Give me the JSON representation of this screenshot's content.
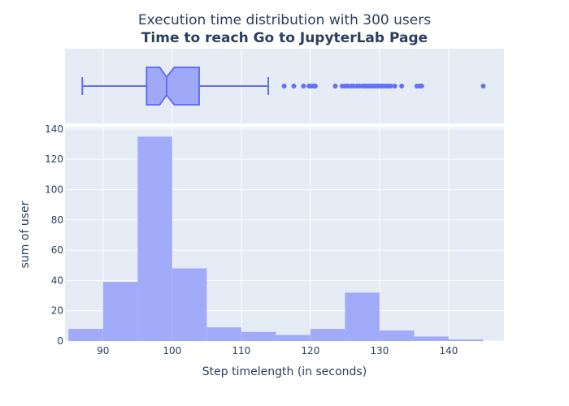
{
  "chart_data": {
    "type": "histogram",
    "title": "Execution time distribution with 300 users",
    "subtitle": "Time to reach Go to JupyterLab Page",
    "xlabel": "Step timelength (in seconds)",
    "ylabel": "sum of user",
    "xlim": [
      84.5,
      148
    ],
    "ylim": [
      0,
      141
    ],
    "x_ticks": [
      90,
      100,
      110,
      120,
      130,
      140
    ],
    "y_ticks": [
      0,
      20,
      40,
      60,
      80,
      100,
      120,
      140
    ],
    "bin_width": 5,
    "bins": [
      {
        "start": 85,
        "end": 90,
        "count": 8
      },
      {
        "start": 90,
        "end": 95,
        "count": 39
      },
      {
        "start": 95,
        "end": 100,
        "count": 135
      },
      {
        "start": 100,
        "end": 105,
        "count": 48
      },
      {
        "start": 105,
        "end": 110,
        "count": 9
      },
      {
        "start": 110,
        "end": 115,
        "count": 6
      },
      {
        "start": 115,
        "end": 120,
        "count": 4
      },
      {
        "start": 120,
        "end": 125,
        "count": 8
      },
      {
        "start": 125,
        "end": 130,
        "count": 32
      },
      {
        "start": 130,
        "end": 135,
        "count": 7
      },
      {
        "start": 135,
        "end": 140,
        "count": 3
      },
      {
        "start": 140,
        "end": 145,
        "count": 1
      }
    ],
    "box": {
      "min": 87,
      "q1": 96.3,
      "notch_low": 98.2,
      "median": 99.2,
      "notch_high": 100.3,
      "q3": 103.9,
      "max": 113.9,
      "outliers": [
        116.2,
        117.6,
        119.0,
        119.8,
        120.2,
        120.5,
        120.7,
        123.6,
        124.6,
        125.0,
        125.4,
        125.9,
        126.2,
        126.7,
        127.1,
        127.5,
        127.8,
        128.1,
        128.4,
        128.8,
        129.1,
        129.4,
        129.7,
        130.0,
        130.3,
        130.6,
        131.0,
        131.3,
        131.6,
        132.2,
        133.2,
        135.4,
        135.8,
        136.1,
        145.0
      ]
    },
    "grid": true,
    "colors": {
      "bars": "#a1abf9",
      "box_line": "#636efa",
      "box_fill": "#a0a8f8",
      "plot_bg": "#e5ecf6",
      "text": "#2a3f5f"
    }
  }
}
